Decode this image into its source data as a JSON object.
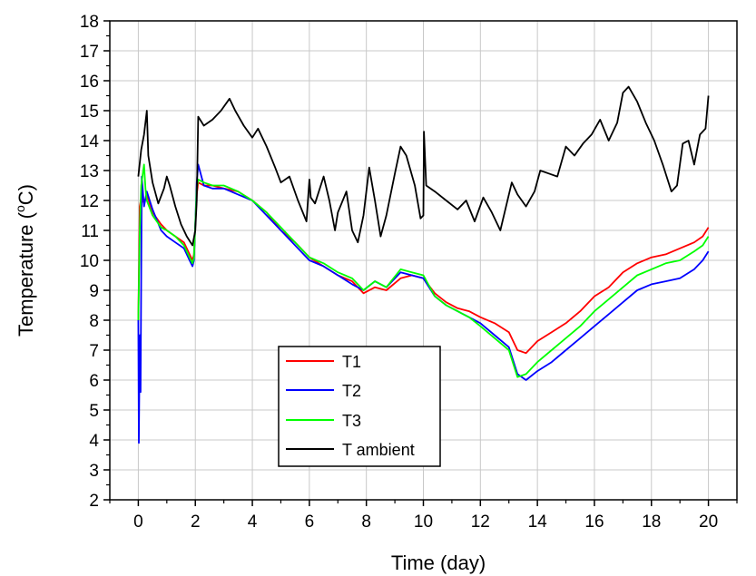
{
  "chart_data": {
    "type": "line",
    "xlabel": "Time (day)",
    "ylabel": {
      "prefix": "Temperature (",
      "superscript": "o",
      "suffix": "C)"
    },
    "xlim": [
      -1,
      21
    ],
    "ylim": [
      2,
      18
    ],
    "xticks": [
      0,
      2,
      4,
      6,
      8,
      10,
      12,
      14,
      16,
      18,
      20
    ],
    "xtick_labels": [
      "0",
      "2",
      "4",
      "6",
      "8",
      "10",
      "12",
      "14",
      "16",
      "18",
      "20"
    ],
    "yticks": [
      2,
      3,
      4,
      5,
      6,
      7,
      8,
      9,
      10,
      11,
      12,
      13,
      14,
      15,
      16,
      17,
      18
    ],
    "ytick_labels": [
      "2",
      "3",
      "4",
      "5",
      "6",
      "7",
      "8",
      "9",
      "10",
      "11",
      "12",
      "13",
      "14",
      "15",
      "16",
      "17",
      "18"
    ],
    "grid": true,
    "legend_position": "bottom-center",
    "series": [
      {
        "name": "T1",
        "color": "#ff0000",
        "x": [
          0,
          0.05,
          0.1,
          0.2,
          0.3,
          0.5,
          0.8,
          1.0,
          1.3,
          1.6,
          1.8,
          1.9,
          1.95,
          2.05,
          2.1,
          2.3,
          2.6,
          3.0,
          3.5,
          4.0,
          4.5,
          5.0,
          5.5,
          6.0,
          6.5,
          7.0,
          7.5,
          7.9,
          8.3,
          8.7,
          9.2,
          9.6,
          10.0,
          10.4,
          10.8,
          11.2,
          11.6,
          12.0,
          12.5,
          13.0,
          13.3,
          13.6,
          14.0,
          14.5,
          15.0,
          15.5,
          16.0,
          16.5,
          17.0,
          17.5,
          18.0,
          18.5,
          19.0,
          19.5,
          19.8,
          20.0
        ],
        "y": [
          8.0,
          11.8,
          12.1,
          11.9,
          12.2,
          11.6,
          11.2,
          11.0,
          10.8,
          10.6,
          10.2,
          10.0,
          10.2,
          12.2,
          12.6,
          12.5,
          12.5,
          12.4,
          12.3,
          12.0,
          11.6,
          11.0,
          10.6,
          10.1,
          9.8,
          9.5,
          9.3,
          8.9,
          9.1,
          9.0,
          9.4,
          9.5,
          9.4,
          8.9,
          8.6,
          8.4,
          8.3,
          8.1,
          7.9,
          7.6,
          7.0,
          6.9,
          7.3,
          7.6,
          7.9,
          8.3,
          8.8,
          9.1,
          9.6,
          9.9,
          10.1,
          10.2,
          10.4,
          10.6,
          10.8,
          11.1
        ]
      },
      {
        "name": "T2",
        "color": "#0000ff",
        "x": [
          0,
          0.02,
          0.05,
          0.08,
          0.12,
          0.2,
          0.3,
          0.5,
          0.8,
          1.0,
          1.3,
          1.6,
          1.8,
          1.9,
          1.95,
          2.05,
          2.1,
          2.3,
          2.6,
          3.0,
          3.5,
          4.0,
          4.5,
          5.0,
          5.5,
          6.0,
          6.5,
          7.0,
          7.5,
          7.9,
          8.3,
          8.7,
          9.2,
          9.6,
          10.0,
          10.4,
          10.8,
          11.2,
          11.6,
          12.0,
          12.5,
          13.0,
          13.3,
          13.6,
          14.0,
          14.5,
          15.0,
          15.5,
          16.0,
          16.5,
          17.0,
          17.5,
          18.0,
          18.5,
          19.0,
          19.5,
          19.8,
          20.0
        ],
        "y": [
          8.0,
          3.9,
          7.5,
          5.6,
          12.8,
          11.8,
          12.3,
          11.7,
          11.0,
          10.8,
          10.6,
          10.4,
          10.0,
          9.8,
          10.0,
          12.6,
          13.2,
          12.5,
          12.4,
          12.4,
          12.2,
          12.0,
          11.5,
          11.0,
          10.5,
          10.0,
          9.8,
          9.5,
          9.2,
          9.0,
          9.3,
          9.1,
          9.6,
          9.5,
          9.4,
          8.8,
          8.5,
          8.3,
          8.1,
          7.9,
          7.5,
          7.1,
          6.2,
          6.0,
          6.3,
          6.6,
          7.0,
          7.4,
          7.8,
          8.2,
          8.6,
          9.0,
          9.2,
          9.3,
          9.4,
          9.7,
          10.0,
          10.3
        ]
      },
      {
        "name": "T3",
        "color": "#00ff00",
        "x": [
          0,
          0.05,
          0.1,
          0.2,
          0.25,
          0.3,
          0.5,
          0.8,
          1.0,
          1.3,
          1.6,
          1.8,
          1.9,
          1.95,
          2.05,
          2.1,
          2.3,
          2.6,
          3.0,
          3.5,
          4.0,
          4.5,
          5.0,
          5.5,
          6.0,
          6.5,
          7.0,
          7.5,
          7.9,
          8.3,
          8.7,
          9.2,
          9.6,
          10.0,
          10.4,
          10.8,
          11.2,
          11.6,
          12.0,
          12.5,
          13.0,
          13.3,
          13.6,
          14.0,
          14.5,
          15.0,
          15.5,
          16.0,
          16.5,
          17.0,
          17.5,
          18.0,
          18.5,
          19.0,
          19.5,
          19.8,
          20.0
        ],
        "y": [
          8.0,
          11.0,
          12.5,
          13.2,
          12.4,
          12.0,
          11.5,
          11.1,
          11.0,
          10.8,
          10.5,
          10.1,
          9.9,
          10.1,
          12.4,
          12.7,
          12.6,
          12.5,
          12.5,
          12.3,
          12.0,
          11.6,
          11.1,
          10.6,
          10.1,
          9.9,
          9.6,
          9.4,
          9.0,
          9.3,
          9.1,
          9.7,
          9.6,
          9.5,
          8.8,
          8.5,
          8.3,
          8.1,
          7.8,
          7.4,
          7.0,
          6.1,
          6.2,
          6.6,
          7.0,
          7.4,
          7.8,
          8.3,
          8.7,
          9.1,
          9.5,
          9.7,
          9.9,
          10.0,
          10.3,
          10.5,
          10.8
        ]
      },
      {
        "name": "T ambient",
        "color": "#000000",
        "x": [
          0,
          0.1,
          0.2,
          0.3,
          0.35,
          0.5,
          0.7,
          0.9,
          1.0,
          1.1,
          1.3,
          1.5,
          1.7,
          1.9,
          2.0,
          2.05,
          2.1,
          2.3,
          2.6,
          2.9,
          3.2,
          3.4,
          3.7,
          4.0,
          4.2,
          4.5,
          4.8,
          5.0,
          5.3,
          5.6,
          5.9,
          6.0,
          6.05,
          6.2,
          6.5,
          6.7,
          6.9,
          7.0,
          7.3,
          7.5,
          7.7,
          7.9,
          8.1,
          8.3,
          8.5,
          8.7,
          9.0,
          9.2,
          9.4,
          9.7,
          9.9,
          10.0,
          10.02,
          10.1,
          10.4,
          10.8,
          11.2,
          11.5,
          11.8,
          12.1,
          12.4,
          12.7,
          12.9,
          13.1,
          13.3,
          13.6,
          13.9,
          14.1,
          14.4,
          14.7,
          15.0,
          15.3,
          15.6,
          15.9,
          16.2,
          16.5,
          16.8,
          17.0,
          17.2,
          17.5,
          17.8,
          18.1,
          18.4,
          18.7,
          18.9,
          19.1,
          19.3,
          19.5,
          19.7,
          19.9,
          20.0
        ],
        "y": [
          12.8,
          13.7,
          14.2,
          15.0,
          13.5,
          12.6,
          11.9,
          12.4,
          12.8,
          12.5,
          11.8,
          11.2,
          10.8,
          10.5,
          11.0,
          12.0,
          14.8,
          14.5,
          14.7,
          15.0,
          15.4,
          15.0,
          14.5,
          14.1,
          14.4,
          13.8,
          13.1,
          12.6,
          12.8,
          12.0,
          11.3,
          12.7,
          12.1,
          11.9,
          12.8,
          12.0,
          11.0,
          11.6,
          12.3,
          11.0,
          10.6,
          11.5,
          13.1,
          12.0,
          10.8,
          11.5,
          12.9,
          13.8,
          13.5,
          12.5,
          11.4,
          11.5,
          14.3,
          12.5,
          12.3,
          12.0,
          11.7,
          12.0,
          11.3,
          12.1,
          11.6,
          11.0,
          11.8,
          12.6,
          12.2,
          11.8,
          12.3,
          13.0,
          12.9,
          12.8,
          13.8,
          13.5,
          13.9,
          14.2,
          14.7,
          14.0,
          14.6,
          15.6,
          15.8,
          15.3,
          14.6,
          14.0,
          13.2,
          12.3,
          12.5,
          13.9,
          14.0,
          13.2,
          14.2,
          14.4,
          15.5
        ]
      }
    ]
  }
}
